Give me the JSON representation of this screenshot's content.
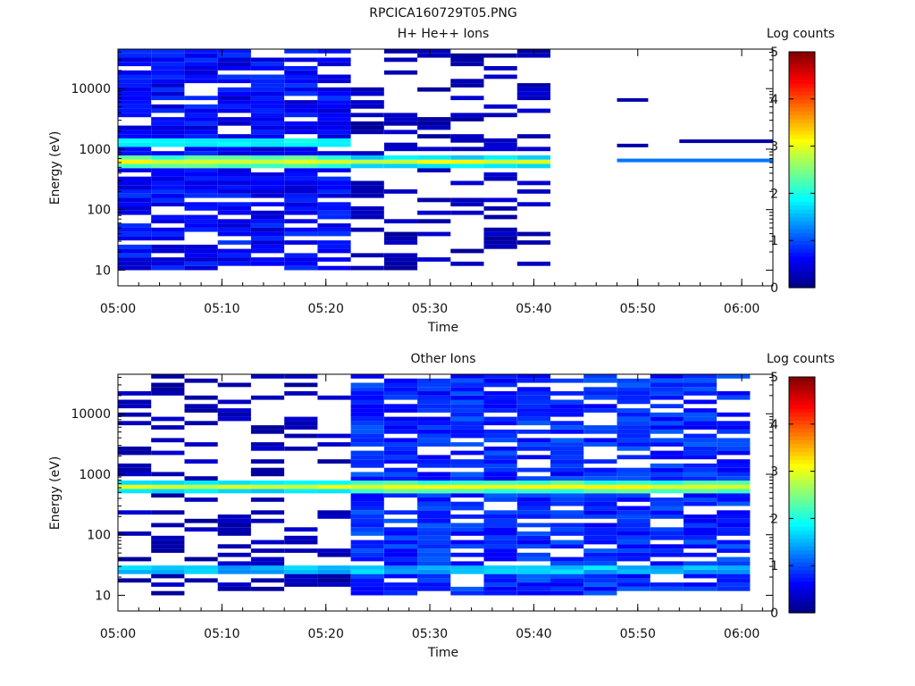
{
  "figure_title": "RPCICA160729T05.PNG",
  "chart_data": [
    {
      "type": "heatmap",
      "title": "H+ He++ Ions",
      "xlabel": "Time",
      "ylabel": "Energy (eV)",
      "x_ticks": [
        "05:00",
        "05:10",
        "05:20",
        "05:30",
        "05:40",
        "05:50",
        "06:00"
      ],
      "x_range": [
        "05:00",
        "06:03"
      ],
      "y_ticks": [
        "10",
        "100",
        "1000",
        "10000"
      ],
      "y_range": [
        5.5,
        45000
      ],
      "y_scale": "log",
      "colorbar": {
        "label": "Log counts",
        "ticks": [
          "0",
          "1",
          "2",
          "3",
          "4",
          "5"
        ],
        "range": [
          0,
          5
        ],
        "colormap": "jet"
      },
      "bins_start_minute": [
        0,
        3.2,
        6.4,
        9.6,
        12.8,
        16,
        19.2,
        22.4,
        25.6,
        28.8,
        32,
        35.2,
        38.4
      ],
      "bins_duration_minutes": 3.2,
      "dense_coverage_until": "05:22",
      "sparse_coverage_until": "05:45",
      "main_band": {
        "energy_ev": 640,
        "peak_log_counts": 3.2
      },
      "secondary_band": {
        "energy_ev": 1300,
        "log_counts": 2.0
      },
      "sparse_later_lines": [
        {
          "time_start": "05:48",
          "time_end": "05:51",
          "energy_ev": 6500,
          "log_counts": 0.2
        },
        {
          "time_start": "05:48",
          "time_end": "05:51",
          "energy_ev": 1150,
          "log_counts": 0.2
        },
        {
          "time_start": "05:48",
          "time_end": "06:03",
          "energy_ev": 650,
          "log_counts": 1.2
        },
        {
          "time_start": "05:54",
          "time_end": "06:03",
          "energy_ev": 1350,
          "log_counts": 0.2
        }
      ]
    },
    {
      "type": "heatmap",
      "title": "Other Ions",
      "xlabel": "Time",
      "ylabel": "Energy (eV)",
      "x_ticks": [
        "05:00",
        "05:10",
        "05:20",
        "05:30",
        "05:40",
        "05:50",
        "06:00"
      ],
      "x_range": [
        "05:00",
        "06:03"
      ],
      "y_ticks": [
        "10",
        "100",
        "1000",
        "10000"
      ],
      "y_range": [
        5.5,
        45000
      ],
      "y_scale": "log",
      "colorbar": {
        "label": "Log counts",
        "ticks": [
          "0",
          "1",
          "2",
          "3",
          "4",
          "5"
        ],
        "range": [
          0,
          5
        ],
        "colormap": "jet"
      },
      "bins_start_minute": [
        0,
        3.2,
        6.4,
        9.6,
        12.8,
        16,
        19.2,
        22.4,
        25.6,
        28.8,
        32,
        35.2,
        38.4,
        41.6,
        44.8,
        48,
        51.2,
        54.4,
        57.6
      ],
      "bins_duration_minutes": 3.2,
      "sparse_coverage_until": "05:22",
      "dense_coverage_until": "06:01",
      "main_band": {
        "energy_ev": 640,
        "peak_log_counts": 3.2
      },
      "low_energy_band": {
        "energy_ev": 28,
        "log_counts": 1.8
      }
    }
  ]
}
